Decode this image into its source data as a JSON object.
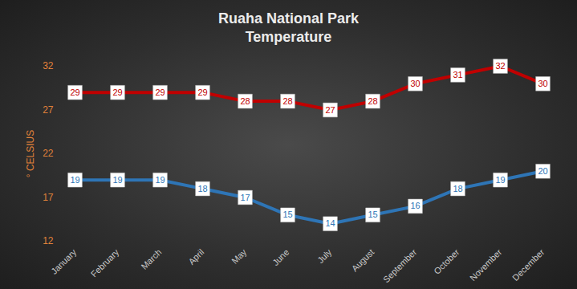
{
  "chart_data": {
    "type": "line",
    "title": "Ruaha National Park\nTemperature",
    "y_label": "° CELSIUS",
    "categories": [
      "January",
      "February",
      "March",
      "April",
      "May",
      "June",
      "July",
      "August",
      "September",
      "October",
      "November",
      "December"
    ],
    "series": [
      {
        "color": "#c00000",
        "values": [
          29,
          29,
          29,
          29,
          28,
          28,
          27,
          28,
          30,
          31,
          32,
          30
        ]
      },
      {
        "color": "#2e75b6",
        "values": [
          19,
          19,
          19,
          18,
          17,
          15,
          14,
          15,
          16,
          18,
          19,
          20
        ]
      }
    ],
    "ylim": [
      12,
      32
    ],
    "yticks": [
      12,
      17,
      22,
      27,
      32
    ],
    "grid": false,
    "data_labels": true,
    "marker": "square"
  }
}
